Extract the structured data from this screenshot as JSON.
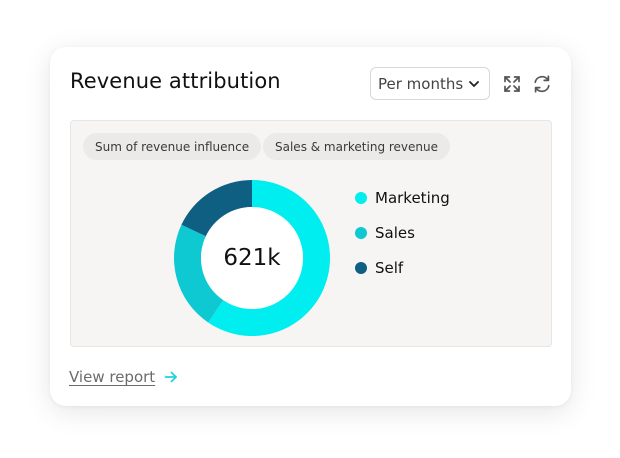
{
  "card": {
    "title": "Revenue attribution",
    "period_select": {
      "value": "Per months"
    },
    "toolbar": {
      "expand_icon": "expand-icon",
      "refresh_icon": "refresh-icon"
    }
  },
  "filters": {
    "chips": [
      {
        "label": "Sum of revenue influence"
      },
      {
        "label": "Sales & marketing revenue"
      }
    ]
  },
  "chart_data": {
    "type": "pie",
    "center_label": "621k",
    "categories": [
      "Marketing",
      "Sales",
      "Self"
    ],
    "values": [
      0.595,
      0.225,
      0.18
    ],
    "colors": [
      "#00eef0",
      "#0fc9d2",
      "#0e5f82"
    ],
    "legend_placement": "right"
  },
  "legend": {
    "items": [
      {
        "label": "Marketing",
        "color": "#00eef0"
      },
      {
        "label": "Sales",
        "color": "#0fc9d2"
      },
      {
        "label": "Self",
        "color": "#0e5f82"
      }
    ]
  },
  "footer": {
    "link_label": "View report",
    "accent": "#1fd2dd"
  }
}
